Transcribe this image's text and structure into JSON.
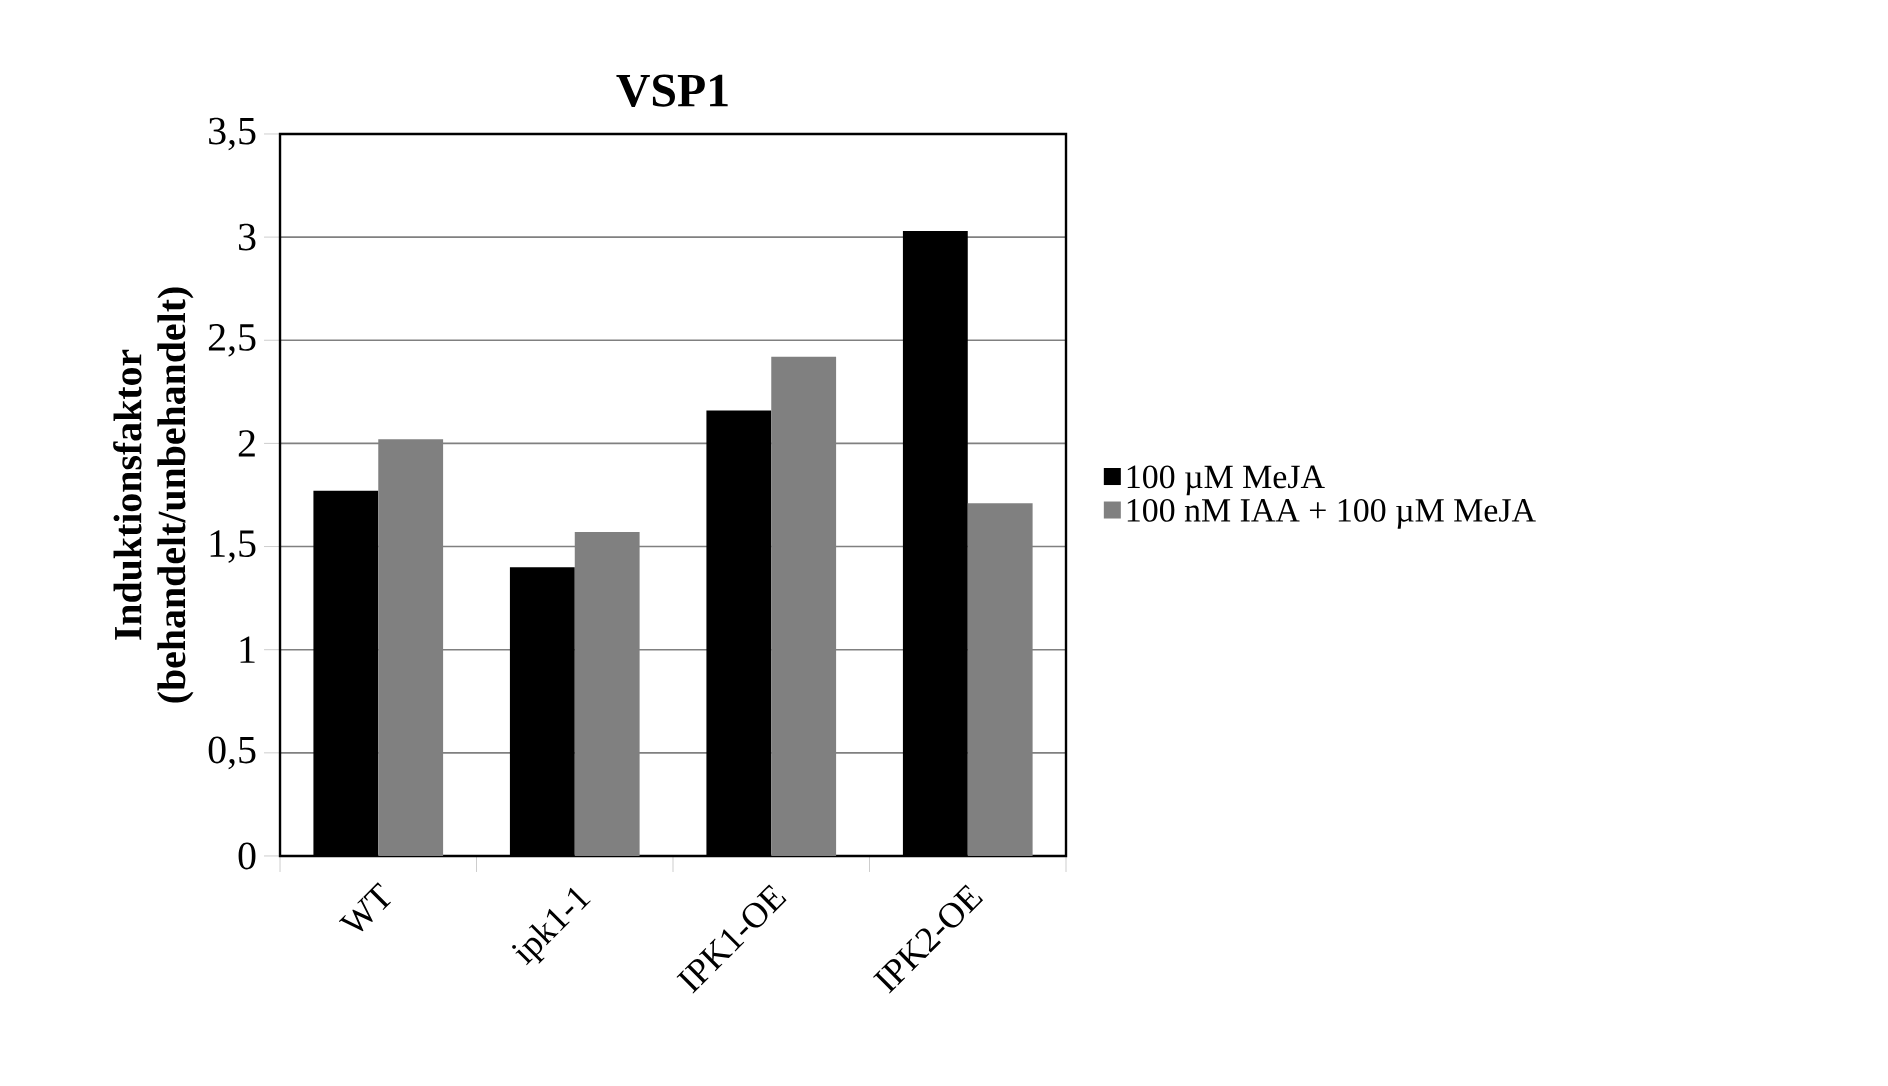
{
  "chart_data": {
    "type": "bar",
    "title": "VSP1",
    "ylabel": "Induktionsfaktor (behandelt/unbehandelt)",
    "categories": [
      "WT",
      "ipk1-1",
      "IPK1-OE",
      "IPK2-OE"
    ],
    "series": [
      {
        "name": "100 µM MeJA",
        "color": "#000000",
        "values": [
          1.77,
          1.4,
          2.16,
          3.03
        ]
      },
      {
        "name": "100 nM IAA + 100 µM MeJA",
        "color": "#808080",
        "values": [
          2.02,
          1.57,
          2.42,
          1.71
        ]
      }
    ],
    "ylim": [
      0,
      3.5
    ],
    "yticks": [
      0,
      {
        "value": 0.5,
        "label": "0,5"
      },
      1,
      {
        "value": 1.5,
        "label": "1,5"
      },
      2,
      {
        "value": 2.5,
        "label": "2,5"
      },
      3,
      {
        "value": 3.5,
        "label": "3,5"
      }
    ],
    "grid": "y",
    "legend": "right"
  }
}
